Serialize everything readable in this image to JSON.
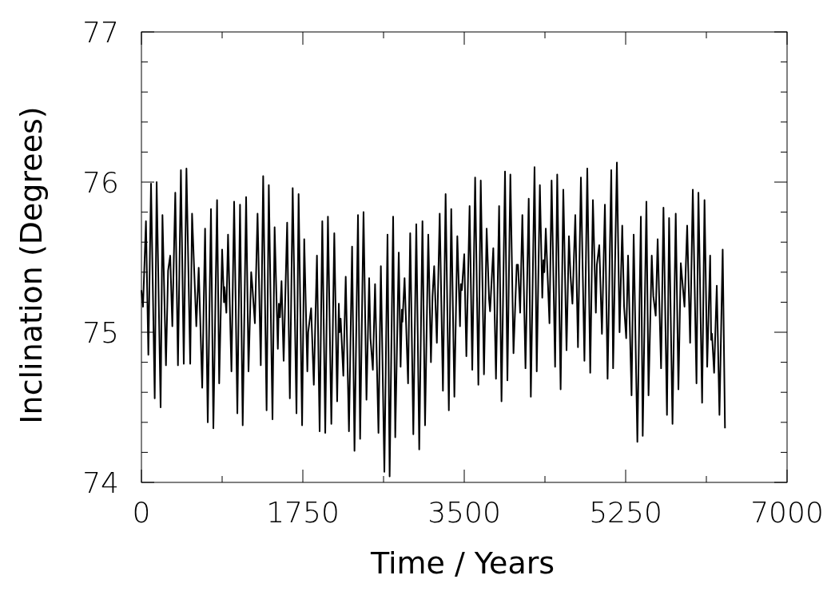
{
  "chart_data": {
    "type": "line",
    "xlabel": "Time / Years",
    "ylabel": "Inclination (Degrees)",
    "xlim": [
      0,
      7000
    ],
    "ylim": [
      74,
      77
    ],
    "xticks": [
      0,
      {
        "value": 875,
        "label": null
      },
      1750,
      {
        "value": 2625,
        "label": null
      },
      3500,
      {
        "value": 4375,
        "label": null
      },
      5250,
      {
        "value": 6125,
        "label": null
      },
      7000
    ],
    "yticks": [
      74,
      {
        "value": 74.2,
        "label": null
      },
      {
        "value": 74.4,
        "label": null
      },
      {
        "value": 74.6,
        "label": null
      },
      {
        "value": 74.8,
        "label": null
      },
      75,
      {
        "value": 75.2,
        "label": null
      },
      {
        "value": 75.4,
        "label": null
      },
      {
        "value": 75.6,
        "label": null
      },
      {
        "value": 75.8,
        "label": null
      },
      76,
      {
        "value": 76.2,
        "label": null
      },
      {
        "value": 76.4,
        "label": null
      },
      {
        "value": 76.6,
        "label": null
      },
      {
        "value": 76.8,
        "label": null
      },
      77
    ],
    "grid": false,
    "marker": "none",
    "line_style": "solid",
    "series": [
      {
        "color": "#000000",
        "x": [
          0,
          17,
          49,
          75,
          104,
          144,
          165,
          208,
          228,
          266,
          289,
          312,
          335,
          367,
          396,
          428,
          459,
          488,
          529,
          549,
          595,
          621,
          659,
          690,
          719,
          754,
          780,
          820,
          843,
          875,
          895,
          901,
          921,
          939,
          976,
          1005,
          1040,
          1069,
          1098,
          1135,
          1161,
          1190,
          1201,
          1230,
          1259,
          1294,
          1320,
          1357,
          1381,
          1421,
          1444,
          1479,
          1490,
          1502,
          1519,
          1542,
          1580,
          1609,
          1640,
          1681,
          1704,
          1742,
          1765,
          1799,
          1808,
          1840,
          1869,
          1903,
          1932,
          1961,
          1993,
          2022,
          2059,
          2091,
          2122,
          2140,
          2148,
          2160,
          2189,
          2215,
          2250,
          2284,
          2310,
          2348,
          2371,
          2408,
          2440,
          2469,
          2483,
          2509,
          2533,
          2570,
          2596,
          2634,
          2668,
          2691,
          2729,
          2752,
          2790,
          2810,
          2824,
          2830,
          2853,
          2891,
          2914,
          2948,
          2980,
          3012,
          3047,
          3075,
          3110,
          3139,
          3156,
          3174,
          3203,
          3234,
          3269,
          3298,
          3333,
          3359,
          3393,
          3425,
          3454,
          3463,
          3474,
          3500,
          3523,
          3558,
          3587,
          3618,
          3653,
          3679,
          3714,
          3743,
          3769,
          3780,
          3815,
          3844,
          3878,
          3904,
          3942,
          3968,
          4000,
          4034,
          4069,
          4083,
          4106,
          4130,
          4164,
          4199,
          4222,
          4262,
          4286,
          4320,
          4346,
          4358,
          4369,
          4384,
          4424,
          4447,
          4485,
          4508,
          4545,
          4574,
          4609,
          4635,
          4652,
          4673,
          4704,
          4733,
          4765,
          4803,
          4834,
          4866,
          4895,
          4927,
          4938,
          4964,
          4993,
          5025,
          5054,
          5094,
          5114,
          5155,
          5184,
          5213,
          5233,
          5256,
          5276,
          5314,
          5337,
          5377,
          5415,
          5435,
          5475,
          5498,
          5533,
          5550,
          5576,
          5597,
          5634,
          5660,
          5698,
          5721,
          5758,
          5793,
          5822,
          5848,
          5888,
          5917,
          5949,
          5978,
          6018,
          6039,
          6079,
          6105,
          6134,
          6166,
          6177,
          6186,
          6209,
          6238,
          6267,
          6302,
          6327
        ],
        "values": [
          75.28,
          75.17,
          75.74,
          74.85,
          75.99,
          74.56,
          76.0,
          74.5,
          75.78,
          74.78,
          75.41,
          75.51,
          75.04,
          75.93,
          74.78,
          76.08,
          74.79,
          76.09,
          74.79,
          75.79,
          75.04,
          75.43,
          74.63,
          75.69,
          74.4,
          75.82,
          74.36,
          75.88,
          74.66,
          75.55,
          75.2,
          75.3,
          75.13,
          75.65,
          74.74,
          75.87,
          74.46,
          75.85,
          74.38,
          75.9,
          74.74,
          75.4,
          75.32,
          75.06,
          75.79,
          74.78,
          76.04,
          74.48,
          75.98,
          74.42,
          75.7,
          74.89,
          75.19,
          75.1,
          75.34,
          74.81,
          75.73,
          74.56,
          75.96,
          74.46,
          75.92,
          74.38,
          75.62,
          74.74,
          75.0,
          75.16,
          74.65,
          75.51,
          74.34,
          75.74,
          74.33,
          75.77,
          74.39,
          75.66,
          74.54,
          75.19,
          75.0,
          75.09,
          74.71,
          75.37,
          74.34,
          75.57,
          74.21,
          75.78,
          74.29,
          75.8,
          74.55,
          75.36,
          74.96,
          74.75,
          75.32,
          74.33,
          75.44,
          74.07,
          75.65,
          74.04,
          75.77,
          74.3,
          75.53,
          74.77,
          75.15,
          75.07,
          75.36,
          74.66,
          75.66,
          74.32,
          75.72,
          74.22,
          75.74,
          74.38,
          75.65,
          74.8,
          75.24,
          75.44,
          74.93,
          75.79,
          74.61,
          75.92,
          74.48,
          75.82,
          74.57,
          75.64,
          75.04,
          75.32,
          75.28,
          75.52,
          74.84,
          75.84,
          74.75,
          76.03,
          74.65,
          76.01,
          74.72,
          75.69,
          75.22,
          75.14,
          75.56,
          74.69,
          75.84,
          74.54,
          76.07,
          74.68,
          76.05,
          74.86,
          75.45,
          75.45,
          75.13,
          75.78,
          74.76,
          75.89,
          74.57,
          76.1,
          74.74,
          75.98,
          75.23,
          75.48,
          75.4,
          75.69,
          75.06,
          76.01,
          74.77,
          76.05,
          74.62,
          75.95,
          74.88,
          75.64,
          75.38,
          75.19,
          75.78,
          74.9,
          76.03,
          74.81,
          76.09,
          74.73,
          75.88,
          75.13,
          75.45,
          75.58,
          74.99,
          75.85,
          74.69,
          76.08,
          74.76,
          76.13,
          75.0,
          75.71,
          75.17,
          74.96,
          75.51,
          74.58,
          75.65,
          74.27,
          75.77,
          74.31,
          75.87,
          74.58,
          75.51,
          75.24,
          75.11,
          75.62,
          74.76,
          75.83,
          74.45,
          75.76,
          74.39,
          75.79,
          74.62,
          75.46,
          75.17,
          75.71,
          74.93,
          75.95,
          74.66,
          75.93,
          74.53,
          75.88,
          74.77,
          75.51,
          74.95,
          74.99,
          74.73,
          75.31,
          74.45,
          75.55,
          74.36
        ]
      }
    ]
  }
}
